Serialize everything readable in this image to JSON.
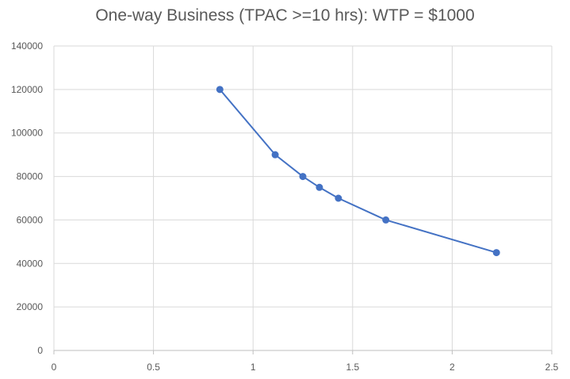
{
  "chart_data": {
    "type": "scatter",
    "title": "One-way Business (TPAC >=10 hrs): WTP = $1000",
    "xlabel": "",
    "ylabel": "",
    "xlim": [
      0,
      2.5
    ],
    "ylim": [
      0,
      140000
    ],
    "x_ticks": [
      "0",
      "0.5",
      "1",
      "1.5",
      "2",
      "2.5"
    ],
    "y_ticks": [
      "0",
      "20000",
      "40000",
      "60000",
      "80000",
      "100000",
      "120000",
      "140000"
    ],
    "grid": true,
    "legend": "none",
    "series": [
      {
        "color": "#4472C4",
        "x": [
          0.8333,
          1.1111,
          1.25,
          1.3333,
          1.4286,
          1.6667,
          2.2222
        ],
        "y": [
          120000,
          90000,
          80000,
          75000,
          70000,
          60000,
          45000
        ]
      }
    ]
  }
}
